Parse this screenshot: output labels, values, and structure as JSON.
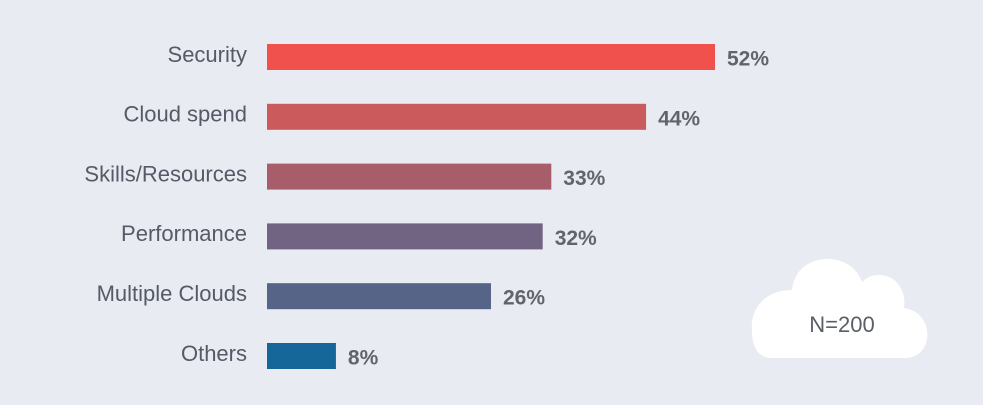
{
  "chart_data": {
    "type": "bar",
    "orientation": "horizontal",
    "categories": [
      "Security",
      "Cloud spend",
      "Skills/Resources",
      "Performance",
      "Multiple Clouds",
      "Others"
    ],
    "values": [
      52,
      44,
      33,
      32,
      26,
      8
    ],
    "value_labels": [
      "52%",
      "44%",
      "33%",
      "32%",
      "26%",
      "8%"
    ],
    "bar_colors": [
      "#f1514c",
      "#cb5a5c",
      "#a85d6a",
      "#716483",
      "#566487",
      "#146798"
    ],
    "xlim": [
      0,
      100
    ],
    "grid": false,
    "legend": "none"
  },
  "badge": {
    "text": "N=200",
    "icon": "cloud-icon"
  },
  "colors": {
    "background": "#e8ebf2",
    "cloud": "#ffffff"
  }
}
